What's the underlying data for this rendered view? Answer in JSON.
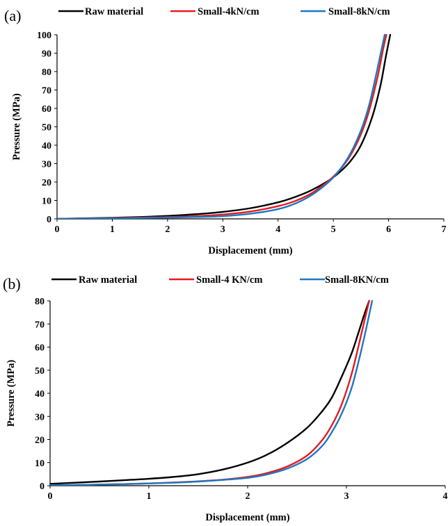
{
  "chart_data": [
    {
      "panel_label": "(a)",
      "type": "line",
      "xlabel": "Displacement (mm)",
      "ylabel": "Pressure (MPa)",
      "xlim": [
        0,
        7
      ],
      "ylim": [
        0,
        100
      ],
      "xticks": [
        "0",
        "1",
        "2",
        "3",
        "4",
        "5",
        "6",
        "7"
      ],
      "yticks": [
        "0",
        "10",
        "20",
        "30",
        "40",
        "50",
        "60",
        "70",
        "80",
        "90",
        "100"
      ],
      "grid": false,
      "legend_position": "top",
      "series": [
        {
          "name": "Raw material",
          "color": "#000000",
          "x": [
            0,
            0.5,
            1,
            1.5,
            2,
            2.5,
            3,
            3.5,
            4,
            4.3,
            4.6,
            4.9,
            5.1,
            5.3,
            5.5,
            5.7,
            5.85,
            5.95,
            6.03
          ],
          "y": [
            0,
            0.3,
            0.6,
            1.0,
            1.6,
            2.5,
            3.8,
            5.8,
            9,
            11.8,
            15.5,
            20.5,
            25,
            31,
            40,
            55,
            72,
            88,
            100
          ]
        },
        {
          "name": "Small-4kN/cm",
          "color": "#e8191d",
          "x": [
            0,
            0.5,
            1,
            1.5,
            2,
            2.5,
            3,
            3.5,
            4,
            4.3,
            4.6,
            4.9,
            5.1,
            5.3,
            5.5,
            5.65,
            5.8,
            5.9,
            5.96
          ],
          "y": [
            0,
            0.2,
            0.4,
            0.7,
            1.0,
            1.5,
            2.4,
            4.0,
            6.9,
            9.6,
            13.8,
            20.3,
            26,
            34,
            46,
            59,
            77,
            92,
            100
          ]
        },
        {
          "name": "Small-8kN/cm",
          "color": "#1f77c0",
          "x": [
            0,
            0.5,
            1,
            1.5,
            2,
            2.5,
            3,
            3.5,
            4,
            4.3,
            4.6,
            4.9,
            5.1,
            5.3,
            5.5,
            5.65,
            5.78,
            5.88,
            5.93
          ],
          "y": [
            0,
            0.2,
            0.3,
            0.5,
            0.7,
            1.0,
            1.5,
            2.8,
            5.3,
            8.2,
            12.8,
            19.6,
            26,
            35,
            48,
            62,
            79,
            93,
            100
          ]
        }
      ]
    },
    {
      "panel_label": "(b)",
      "type": "line",
      "xlabel": "Displacement (mm)",
      "ylabel": "Pressure (MPa)",
      "xlim": [
        0,
        4
      ],
      "ylim": [
        0,
        80
      ],
      "xticks": [
        "0",
        "1",
        "2",
        "3",
        "4"
      ],
      "yticks": [
        "0",
        "10",
        "20",
        "30",
        "40",
        "50",
        "60",
        "70",
        "80"
      ],
      "grid": false,
      "legend_position": "top",
      "series": [
        {
          "name": "Raw material",
          "color": "#000000",
          "x": [
            0,
            0.25,
            0.5,
            0.75,
            1,
            1.25,
            1.5,
            1.75,
            2,
            2.2,
            2.4,
            2.6,
            2.75,
            2.85,
            2.95,
            3.05,
            3.12,
            3.18,
            3.23
          ],
          "y": [
            0.8,
            1.3,
            1.8,
            2.4,
            3.0,
            3.8,
            5.0,
            7.0,
            10,
            13.5,
            18.5,
            25,
            32,
            38,
            47,
            57,
            66,
            74,
            80
          ]
        },
        {
          "name": "Small-4 KN/cm",
          "color": "#e8191d",
          "x": [
            0,
            0.25,
            0.5,
            0.75,
            1,
            1.25,
            1.5,
            1.75,
            2,
            2.2,
            2.4,
            2.6,
            2.75,
            2.85,
            2.95,
            3.05,
            3.12,
            3.18,
            3.23
          ],
          "y": [
            0.2,
            0.3,
            0.5,
            0.7,
            1.0,
            1.4,
            1.9,
            2.6,
            3.8,
            5.5,
            8.3,
            13,
            19.5,
            26,
            35,
            48,
            60,
            71,
            80
          ]
        },
        {
          "name": "Small-8KN/cm",
          "color": "#1f77c0",
          "x": [
            0,
            0.25,
            0.5,
            0.75,
            1,
            1.25,
            1.5,
            1.75,
            2,
            2.2,
            2.4,
            2.6,
            2.75,
            2.85,
            2.95,
            3.05,
            3.13,
            3.2,
            3.26
          ],
          "y": [
            0.2,
            0.3,
            0.5,
            0.7,
            1.0,
            1.3,
            1.8,
            2.5,
            3.4,
            4.9,
            7.4,
            11.5,
            17,
            23,
            31,
            42,
            55,
            68,
            80
          ]
        }
      ]
    }
  ]
}
